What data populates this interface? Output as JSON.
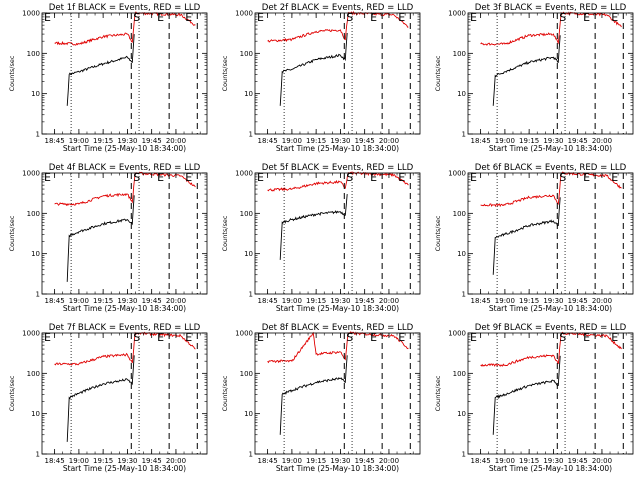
{
  "figure": {
    "ylabel": "Counts/sec",
    "xlabel": "Start Time (25-May-10 18:34:00)",
    "y_ticks": [
      "1",
      "10",
      "100",
      "1000"
    ],
    "x_ticks": [
      "18:45",
      "19:00",
      "19:15",
      "19:30",
      "19:45",
      "20:00"
    ],
    "flags": [
      "E",
      "S",
      "E",
      "E"
    ],
    "colors": {
      "events": "#000000",
      "lld": "#e00000"
    }
  },
  "chart_data": [
    {
      "type": "line",
      "title": "Det 1f BLACK = Events, RED = LLD",
      "xlabel": "Start Time (25-May-10 18:34:00)",
      "ylabel": "Counts/sec",
      "ylim": [
        1,
        1000
      ],
      "log_y": true,
      "x_ticks": [
        "18:45",
        "19:00",
        "19:15",
        "19:30",
        "19:45",
        "20:00"
      ],
      "series": [
        {
          "name": "BLACK = Events",
          "color": "#000000",
          "values": [
            [
              18.88,
              5
            ],
            [
              18.9,
              30
            ],
            [
              19.0,
              35
            ],
            [
              19.25,
              55
            ],
            [
              19.5,
              80
            ],
            [
              19.55,
              60
            ],
            [
              19.57,
              300
            ]
          ]
        },
        {
          "name": "RED = LLD",
          "color": "#e00000",
          "values": [
            [
              18.75,
              180
            ],
            [
              19.0,
              170
            ],
            [
              19.25,
              260
            ],
            [
              19.5,
              300
            ],
            [
              19.55,
              190
            ],
            [
              19.58,
              1000
            ],
            [
              20.05,
              900
            ],
            [
              20.2,
              500
            ]
          ]
        }
      ]
    },
    {
      "type": "line",
      "title": "Det 2f BLACK = Events, RED = LLD",
      "xlabel": "Start Time (25-May-10 18:34:00)",
      "ylabel": "Counts/sec",
      "ylim": [
        1,
        1000
      ],
      "log_y": true,
      "x_ticks": [
        "18:45",
        "19:00",
        "19:15",
        "19:30",
        "19:45",
        "20:00"
      ],
      "series": [
        {
          "name": "BLACK = Events",
          "color": "#000000",
          "values": [
            [
              18.88,
              5
            ],
            [
              18.9,
              35
            ],
            [
              19.0,
              40
            ],
            [
              19.25,
              70
            ],
            [
              19.5,
              90
            ],
            [
              19.55,
              70
            ],
            [
              19.57,
              320
            ]
          ]
        },
        {
          "name": "RED = LLD",
          "color": "#e00000",
          "values": [
            [
              18.75,
              200
            ],
            [
              19.0,
              220
            ],
            [
              19.25,
              350
            ],
            [
              19.5,
              380
            ],
            [
              19.55,
              220
            ],
            [
              19.58,
              1000
            ],
            [
              20.05,
              900
            ],
            [
              20.2,
              450
            ]
          ]
        }
      ]
    },
    {
      "type": "line",
      "title": "Det 3f BLACK = Events, RED = LLD",
      "xlabel": "Start Time (25-May-10 18:34:00)",
      "ylabel": "Counts/sec",
      "ylim": [
        1,
        1000
      ],
      "log_y": true,
      "x_ticks": [
        "18:45",
        "19:00",
        "19:15",
        "19:30",
        "19:45",
        "20:00"
      ],
      "series": [
        {
          "name": "BLACK = Events",
          "color": "#000000",
          "values": [
            [
              18.88,
              5
            ],
            [
              18.9,
              28
            ],
            [
              19.0,
              35
            ],
            [
              19.25,
              60
            ],
            [
              19.5,
              80
            ],
            [
              19.55,
              60
            ],
            [
              19.57,
              280
            ]
          ]
        },
        {
          "name": "RED = LLD",
          "color": "#e00000",
          "values": [
            [
              18.75,
              170
            ],
            [
              19.0,
              170
            ],
            [
              19.25,
              280
            ],
            [
              19.5,
              300
            ],
            [
              19.55,
              180
            ],
            [
              19.58,
              1000
            ],
            [
              20.05,
              900
            ],
            [
              20.2,
              450
            ]
          ]
        }
      ]
    },
    {
      "type": "line",
      "title": "Det 4f BLACK = Events, RED = LLD",
      "xlabel": "Start Time (25-May-10 18:34:00)",
      "ylabel": "Counts/sec",
      "ylim": [
        1,
        1000
      ],
      "log_y": true,
      "x_ticks": [
        "18:45",
        "19:00",
        "19:15",
        "19:30",
        "19:45",
        "20:00"
      ],
      "series": [
        {
          "name": "BLACK = Events",
          "color": "#000000",
          "values": [
            [
              18.88,
              2
            ],
            [
              18.9,
              28
            ],
            [
              19.0,
              35
            ],
            [
              19.25,
              55
            ],
            [
              19.5,
              70
            ],
            [
              19.55,
              55
            ],
            [
              19.57,
              280
            ]
          ]
        },
        {
          "name": "RED = LLD",
          "color": "#e00000",
          "values": [
            [
              18.75,
              170
            ],
            [
              19.0,
              170
            ],
            [
              19.25,
              270
            ],
            [
              19.5,
              300
            ],
            [
              19.55,
              190
            ],
            [
              19.58,
              1000
            ],
            [
              20.05,
              850
            ],
            [
              20.2,
              450
            ]
          ]
        }
      ]
    },
    {
      "type": "line",
      "title": "Det 5f BLACK = Events, RED = LLD",
      "xlabel": "Start Time (25-May-10 18:34:00)",
      "ylabel": "Counts/sec",
      "ylim": [
        1,
        1000
      ],
      "log_y": true,
      "x_ticks": [
        "18:45",
        "19:00",
        "19:15",
        "19:30",
        "19:45",
        "20:00"
      ],
      "series": [
        {
          "name": "BLACK = Events",
          "color": "#000000",
          "values": [
            [
              18.88,
              7
            ],
            [
              18.9,
              60
            ],
            [
              19.0,
              70
            ],
            [
              19.25,
              95
            ],
            [
              19.5,
              110
            ],
            [
              19.55,
              90
            ],
            [
              19.57,
              300
            ]
          ]
        },
        {
          "name": "RED = LLD",
          "color": "#e00000",
          "values": [
            [
              18.75,
              380
            ],
            [
              19.0,
              400
            ],
            [
              19.25,
              550
            ],
            [
              19.5,
              600
            ],
            [
              19.55,
              420
            ],
            [
              19.58,
              1000
            ],
            [
              20.05,
              900
            ],
            [
              20.2,
              500
            ]
          ]
        }
      ]
    },
    {
      "type": "line",
      "title": "Det 6f BLACK = Events, RED = LLD",
      "xlabel": "Start Time (25-May-10 18:34:00)",
      "ylabel": "Counts/sec",
      "ylim": [
        1,
        1000
      ],
      "log_y": true,
      "x_ticks": [
        "18:45",
        "19:00",
        "19:15",
        "19:30",
        "19:45",
        "20:00"
      ],
      "series": [
        {
          "name": "BLACK = Events",
          "color": "#000000",
          "values": [
            [
              18.88,
              3
            ],
            [
              18.9,
              25
            ],
            [
              19.0,
              30
            ],
            [
              19.25,
              50
            ],
            [
              19.5,
              65
            ],
            [
              19.55,
              50
            ],
            [
              19.57,
              250
            ]
          ]
        },
        {
          "name": "RED = LLD",
          "color": "#e00000",
          "values": [
            [
              18.75,
              160
            ],
            [
              19.0,
              160
            ],
            [
              19.25,
              250
            ],
            [
              19.5,
              280
            ],
            [
              19.55,
              170
            ],
            [
              19.58,
              1000
            ],
            [
              20.05,
              850
            ],
            [
              20.2,
              420
            ]
          ]
        }
      ]
    },
    {
      "type": "line",
      "title": "Det 7f BLACK = Events, RED = LLD",
      "xlabel": "Start Time (25-May-10 18:34:00)",
      "ylabel": "Counts/sec",
      "ylim": [
        1,
        1000
      ],
      "log_y": true,
      "x_ticks": [
        "18:45",
        "19:00",
        "19:15",
        "19:30",
        "19:45",
        "20:00"
      ],
      "series": [
        {
          "name": "BLACK = Events",
          "color": "#000000",
          "values": [
            [
              18.88,
              2
            ],
            [
              18.9,
              25
            ],
            [
              19.0,
              32
            ],
            [
              19.25,
              55
            ],
            [
              19.5,
              70
            ],
            [
              19.55,
              55
            ],
            [
              19.57,
              280
            ]
          ]
        },
        {
          "name": "RED = LLD",
          "color": "#e00000",
          "values": [
            [
              18.75,
              170
            ],
            [
              19.0,
              170
            ],
            [
              19.25,
              260
            ],
            [
              19.5,
              290
            ],
            [
              19.55,
              180
            ],
            [
              19.58,
              1000
            ],
            [
              20.05,
              850
            ],
            [
              20.2,
              400
            ]
          ]
        }
      ]
    },
    {
      "type": "line",
      "title": "Det 8f BLACK = Events, RED = LLD",
      "xlabel": "Start Time (25-May-10 18:34:00)",
      "ylabel": "Counts/sec",
      "ylim": [
        1,
        1000
      ],
      "log_y": true,
      "x_ticks": [
        "18:45",
        "19:00",
        "19:15",
        "19:30",
        "19:45",
        "20:00"
      ],
      "series": [
        {
          "name": "BLACK = Events",
          "color": "#000000",
          "values": [
            [
              18.88,
              3
            ],
            [
              18.9,
              30
            ],
            [
              19.0,
              38
            ],
            [
              19.25,
              60
            ],
            [
              19.5,
              75
            ],
            [
              19.55,
              60
            ],
            [
              19.57,
              280
            ]
          ]
        },
        {
          "name": "RED = LLD",
          "color": "#e00000",
          "values": [
            [
              18.75,
              200
            ],
            [
              19.0,
              200
            ],
            [
              19.22,
              1000
            ],
            [
              19.25,
              300
            ],
            [
              19.5,
              340
            ],
            [
              19.55,
              220
            ],
            [
              19.58,
              1000
            ],
            [
              20.05,
              850
            ],
            [
              20.2,
              420
            ]
          ]
        }
      ]
    },
    {
      "type": "line",
      "title": "Det 9f BLACK = Events, RED = LLD",
      "xlabel": "Start Time (25-May-10 18:34:00)",
      "ylabel": "Counts/sec",
      "ylim": [
        1,
        1000
      ],
      "log_y": true,
      "x_ticks": [
        "18:45",
        "19:00",
        "19:15",
        "19:30",
        "19:45",
        "20:00"
      ],
      "series": [
        {
          "name": "BLACK = Events",
          "color": "#000000",
          "values": [
            [
              18.88,
              3
            ],
            [
              18.9,
              25
            ],
            [
              19.0,
              30
            ],
            [
              19.25,
              50
            ],
            [
              19.5,
              65
            ],
            [
              19.55,
              50
            ],
            [
              19.57,
              270
            ]
          ]
        },
        {
          "name": "RED = LLD",
          "color": "#e00000",
          "values": [
            [
              18.75,
              160
            ],
            [
              19.0,
              160
            ],
            [
              19.25,
              250
            ],
            [
              19.5,
              280
            ],
            [
              19.55,
              170
            ],
            [
              19.58,
              1000
            ],
            [
              20.05,
              850
            ],
            [
              20.2,
              400
            ]
          ]
        }
      ]
    }
  ]
}
